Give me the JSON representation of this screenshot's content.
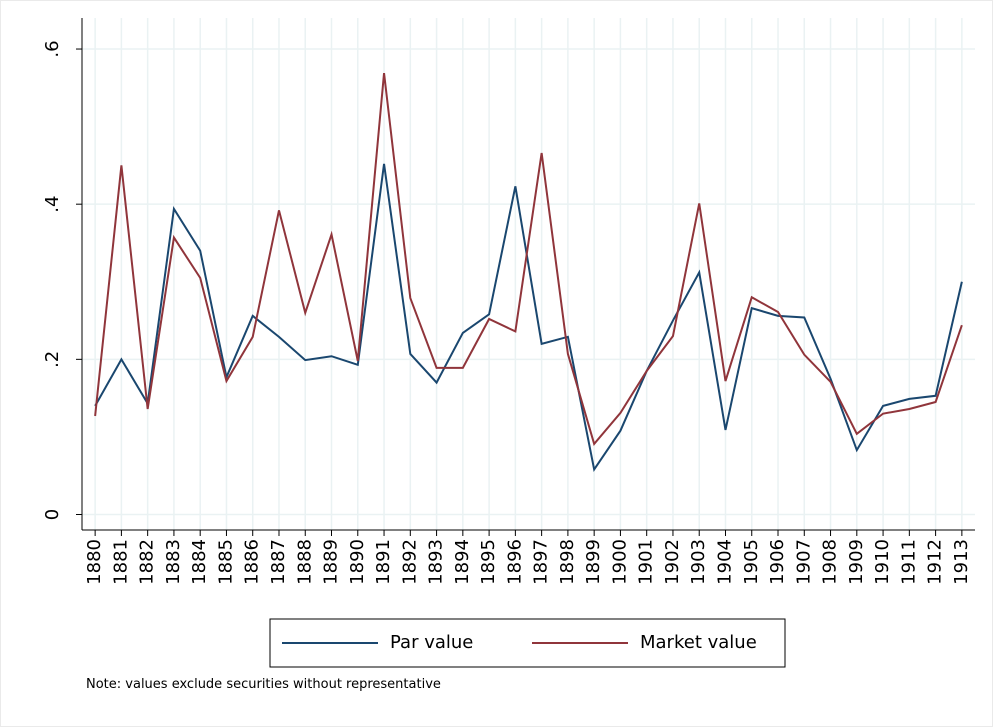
{
  "chart_data": {
    "type": "line",
    "x": [
      1880,
      1881,
      1882,
      1883,
      1884,
      1885,
      1886,
      1887,
      1888,
      1889,
      1890,
      1891,
      1892,
      1893,
      1894,
      1895,
      1896,
      1897,
      1898,
      1899,
      1900,
      1901,
      1902,
      1903,
      1904,
      1905,
      1906,
      1907,
      1908,
      1909,
      1910,
      1911,
      1912,
      1913
    ],
    "series": [
      {
        "name": "Par value",
        "color": "#1a476f",
        "values": [
          0.14,
          0.2,
          0.143,
          0.394,
          0.34,
          0.177,
          0.256,
          0.229,
          0.199,
          0.204,
          0.193,
          0.452,
          0.207,
          0.17,
          0.234,
          0.258,
          0.423,
          0.22,
          0.229,
          0.058,
          0.108,
          0.185,
          0.25,
          0.312,
          0.109,
          0.266,
          0.256,
          0.254,
          0.175,
          0.083,
          0.14,
          0.149,
          0.153,
          0.3
        ]
      },
      {
        "name": "Market value",
        "color": "#90353b",
        "values": [
          0.127,
          0.45,
          0.136,
          0.357,
          0.305,
          0.172,
          0.229,
          0.392,
          0.26,
          0.361,
          0.198,
          0.569,
          0.279,
          0.189,
          0.189,
          0.252,
          0.236,
          0.466,
          0.207,
          0.091,
          0.131,
          0.185,
          0.23,
          0.401,
          0.172,
          0.28,
          0.261,
          0.206,
          0.171,
          0.104,
          0.13,
          0.136,
          0.145,
          0.244
        ]
      }
    ],
    "xlim": [
      1879.5,
      1913.5
    ],
    "ylim": [
      -0.02,
      0.64
    ],
    "yticks": [
      0,
      {
        "value": 0.2,
        "label": ".2"
      },
      {
        "value": 0.4,
        "label": ".4"
      },
      {
        "value": 0.6,
        "label": ".6"
      }
    ],
    "grid": true,
    "legend": "bottom",
    "note": "Note: values exclude securities without representative"
  }
}
